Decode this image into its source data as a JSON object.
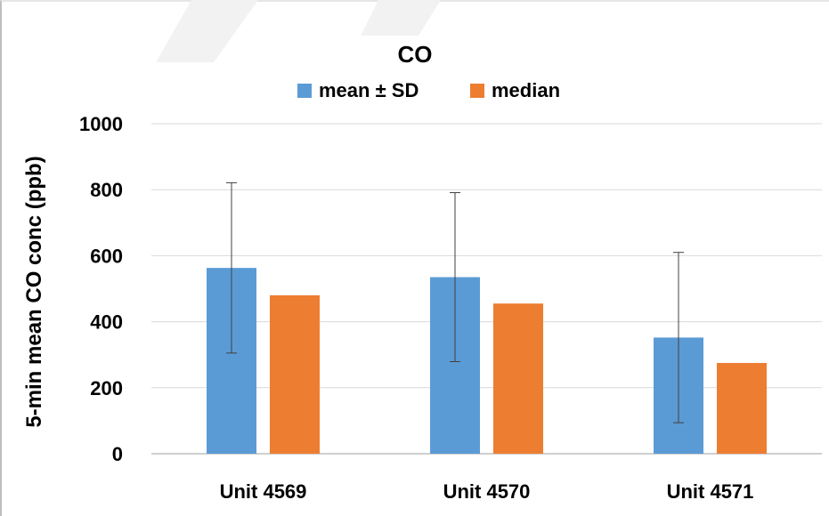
{
  "chart_data": {
    "type": "bar",
    "title": "CO",
    "ylabel": "5-min mean CO conc (ppb)",
    "xlabel": "",
    "categories": [
      "Unit 4569",
      "Unit 4570",
      "Unit 4571"
    ],
    "series": [
      {
        "name": "mean ± SD",
        "values": [
          563,
          535,
          352
        ],
        "sd": [
          258,
          256,
          258
        ],
        "color": "#5b9bd5"
      },
      {
        "name": "median",
        "values": [
          480,
          455,
          275
        ],
        "color": "#ed7d31"
      }
    ],
    "ylim": [
      0,
      1000
    ],
    "yticks": [
      "0",
      "200",
      "400",
      "600",
      "800",
      "1000"
    ],
    "grid": true,
    "legend_position": "top"
  }
}
